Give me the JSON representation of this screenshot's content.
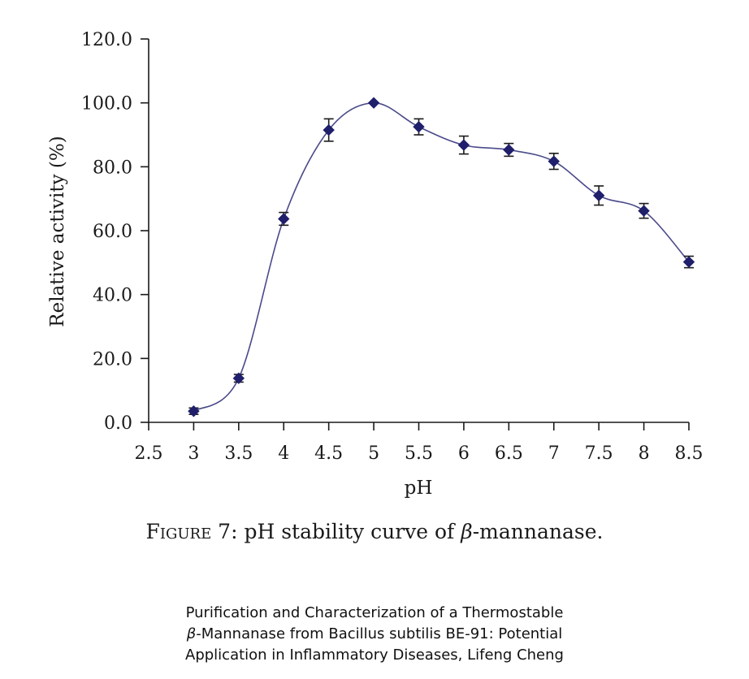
{
  "chart_data": {
    "type": "line",
    "title": "",
    "xlabel": "pH",
    "ylabel": "Relative activity (%)",
    "xlim": [
      2.5,
      8.5
    ],
    "ylim": [
      0,
      120
    ],
    "x_ticks": [
      "2.5",
      "3",
      "3.5",
      "4",
      "4.5",
      "5",
      "5.5",
      "6",
      "6.5",
      "7",
      "7.5",
      "8",
      "8.5"
    ],
    "x_tick_values": [
      2.5,
      3,
      3.5,
      4,
      4.5,
      5,
      5.5,
      6,
      6.5,
      7,
      7.5,
      8,
      8.5
    ],
    "y_ticks": [
      "0.0",
      "20.0",
      "40.0",
      "60.0",
      "80.0",
      "100.0",
      "120.0"
    ],
    "y_tick_values": [
      0,
      20,
      40,
      60,
      80,
      100,
      120
    ],
    "grid": false,
    "series": [
      {
        "name": "Relative activity",
        "color": "#1f1f6b",
        "marker": "diamond",
        "x": [
          3,
          3.5,
          4,
          4.5,
          5,
          5.5,
          6,
          6.5,
          7,
          7.5,
          8,
          8.5
        ],
        "values": [
          3.5,
          13.8,
          63.7,
          91.5,
          100.0,
          92.5,
          86.8,
          85.3,
          81.7,
          71.0,
          66.2,
          50.2
        ],
        "error": [
          1.0,
          1.2,
          2.0,
          3.5,
          0.0,
          2.5,
          2.8,
          2.0,
          2.5,
          3.0,
          2.3,
          1.8
        ]
      }
    ]
  },
  "caption": {
    "label": "Figure 7:",
    "text_before": " pH stability curve of ",
    "symbol": "β",
    "text_after": "-mannanase."
  },
  "credit": {
    "line1": "Purification and Characterization of a Thermostable",
    "line2_symbol": "β",
    "line2_text": "-Mannanase from Bacillus subtilis BE-91: Potential",
    "line3": "Application in Inflammatory Diseases, Lifeng Cheng"
  }
}
